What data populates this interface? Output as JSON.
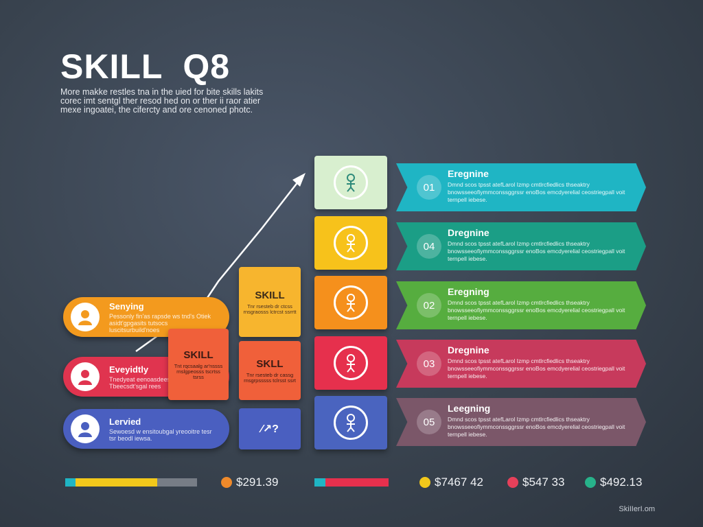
{
  "header": {
    "title": "SKILL  Q8",
    "subtitle": "More makke restles tna in the uied for bite skills lakits corec imt sentgl ther resod hed on or ther ii raor atier mexe ingoatei, the cifercty and ore cenoned photc."
  },
  "pills": [
    {
      "title": "Senying",
      "desc": "Pessonly fin'as rapsde ws tnd's Otiek asidt'gpgasits tutsocs luscitsurbuild'noes",
      "color": "#f39a1e"
    },
    {
      "title": "Eveyidtly",
      "desc": "Tnedyeat eenoasdeesf ueacse uiede Tbeecsdt'sgal rees",
      "color": "#e0344f"
    },
    {
      "title": "Lervied",
      "desc": "Sewoesd w ensitoubgal yreooitre tesr tsr beodl iewsa.",
      "color": "#4a5fc0"
    }
  ],
  "blocks": [
    {
      "title": "SKILL",
      "desc": "Tnr rsesteb dr ctcss rnsgraosss lctrcst ssrrtt"
    },
    {
      "title": "SKILL",
      "desc": "Tnt rqcsaalg ar'nssss rnslgpeosss tscrtss tsrss"
    },
    {
      "title": "SKLL",
      "desc": "Tnr rsesteb dr cassg rnsgrpsssss tclrsst ssrt"
    },
    {
      "title": "⁄↗?",
      "desc": ""
    }
  ],
  "stages": [
    {
      "number": "01",
      "title": "Eregnine",
      "desc": "Dmnd scos tpsst atefLarol Izmp cmtlrcfiedlics thseaktry bnowsseeofiymmconssggrssr enoBos emcdyerelial ceostriegpall voit ternpell iebese.",
      "tile_color": "#d8efcf",
      "banner_color": "#1fb5c4"
    },
    {
      "number": "04",
      "title": "Dregnine",
      "desc": "Dmnd scos tpsst atefLarol Izmp cmtlrcfiedlics thseaktry bnowsseeofiymmconssggrssr enoBos emcdyerelial ceostriegpall voit ternpell iebese.",
      "tile_color": "#f7c21b",
      "banner_color": "#1b9e86"
    },
    {
      "number": "02",
      "title": "Eregning",
      "desc": "Dmnd scos tpsst atefLarol Izmp cmtlrcfiedlics thseaktry bnowsseeofiymmconssggrssr enoBos emcdyerelial ceostriegpall voit ternpell iebese.",
      "tile_color": "#f5901c",
      "banner_color": "#56ad3f"
    },
    {
      "number": "03",
      "title": "Dregnine",
      "desc": "Dmnd scos tpsst atefLarol Izmp cmtlrcfiedlics thseaktry bnowsseeofiymmconssggrssr enoBos emcdyerelial ceostriegpall voit ternpell iebese.",
      "tile_color": "#e6304d",
      "banner_color": "#c73a5c"
    },
    {
      "number": "05",
      "title": "Leegning",
      "desc": "Dmnd scos tpsst atefLarol Izmp cmtlrcfiedlics thseaktry bnowsseeofiymmconssggrssr enoBos emcdyerelial ceostriegpall voit ternpell iebese.",
      "tile_color": "#4a64bf",
      "banner_color": "#7b5769"
    }
  ],
  "legend": {
    "values": [
      {
        "text": "$291.39",
        "color": "#f08a2b"
      },
      {
        "text": "$7467 42",
        "color": "#f2c81b"
      },
      {
        "text": "$547 33",
        "color": "#e6405a"
      },
      {
        "text": "$492.13",
        "color": "#27b28a"
      }
    ],
    "bars": [
      {
        "colors": [
          "#1fb5c4",
          "#f2c81b",
          "#777d86"
        ],
        "fractions": [
          0.08,
          0.62,
          0.3
        ]
      },
      {
        "colors": [
          "#1fb5c4",
          "#e6304d"
        ],
        "fractions": [
          0.15,
          0.85
        ]
      }
    ]
  },
  "watermark": "SkiIIerI.om"
}
